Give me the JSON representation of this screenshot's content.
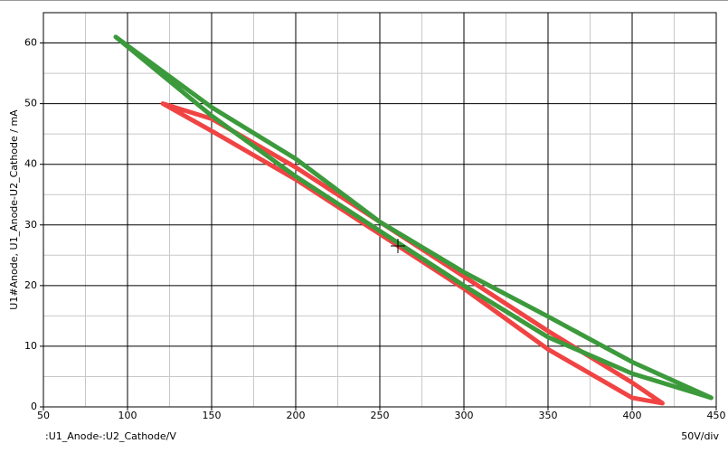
{
  "chart_data": {
    "type": "line",
    "x_label": ":U1_Anode-:U2_Cathode/V",
    "y_label": "U1#Anode, U1_Anode-U2_Cathode / mA",
    "scale_label": "50V/div",
    "xlim": [
      50,
      450
    ],
    "ylim": [
      0,
      65
    ],
    "xticks": [
      50,
      100,
      150,
      200,
      250,
      300,
      350,
      400,
      450
    ],
    "yticks": [
      0,
      10,
      20,
      30,
      40,
      50,
      60
    ],
    "minor_xgrid": [
      75,
      125,
      175,
      225,
      275,
      325,
      375,
      425
    ],
    "minor_ygrid": [
      5,
      15,
      25,
      35,
      45,
      55
    ],
    "grid": true,
    "series": [
      {
        "color": "#f04444",
        "x": [
          121,
          150,
          200,
          250,
          300,
          350,
          400,
          418,
          410,
          400,
          350,
          300,
          250,
          200,
          150,
          121
        ],
        "values": [
          50,
          47.5,
          39.5,
          30.5,
          21.5,
          12.5,
          4,
          0.6,
          1,
          1.5,
          9.5,
          19.5,
          28.5,
          37.5,
          45.5,
          50
        ]
      },
      {
        "color": "#3c9a3c",
        "x": [
          93,
          150,
          200,
          250,
          300,
          350,
          400,
          447,
          400,
          350,
          300,
          250,
          200,
          150,
          93
        ],
        "values": [
          61,
          49.4,
          40.9,
          30.5,
          22.2,
          14.9,
          7.4,
          1.5,
          5.5,
          11.5,
          20,
          29,
          38,
          48,
          61
        ]
      }
    ]
  }
}
